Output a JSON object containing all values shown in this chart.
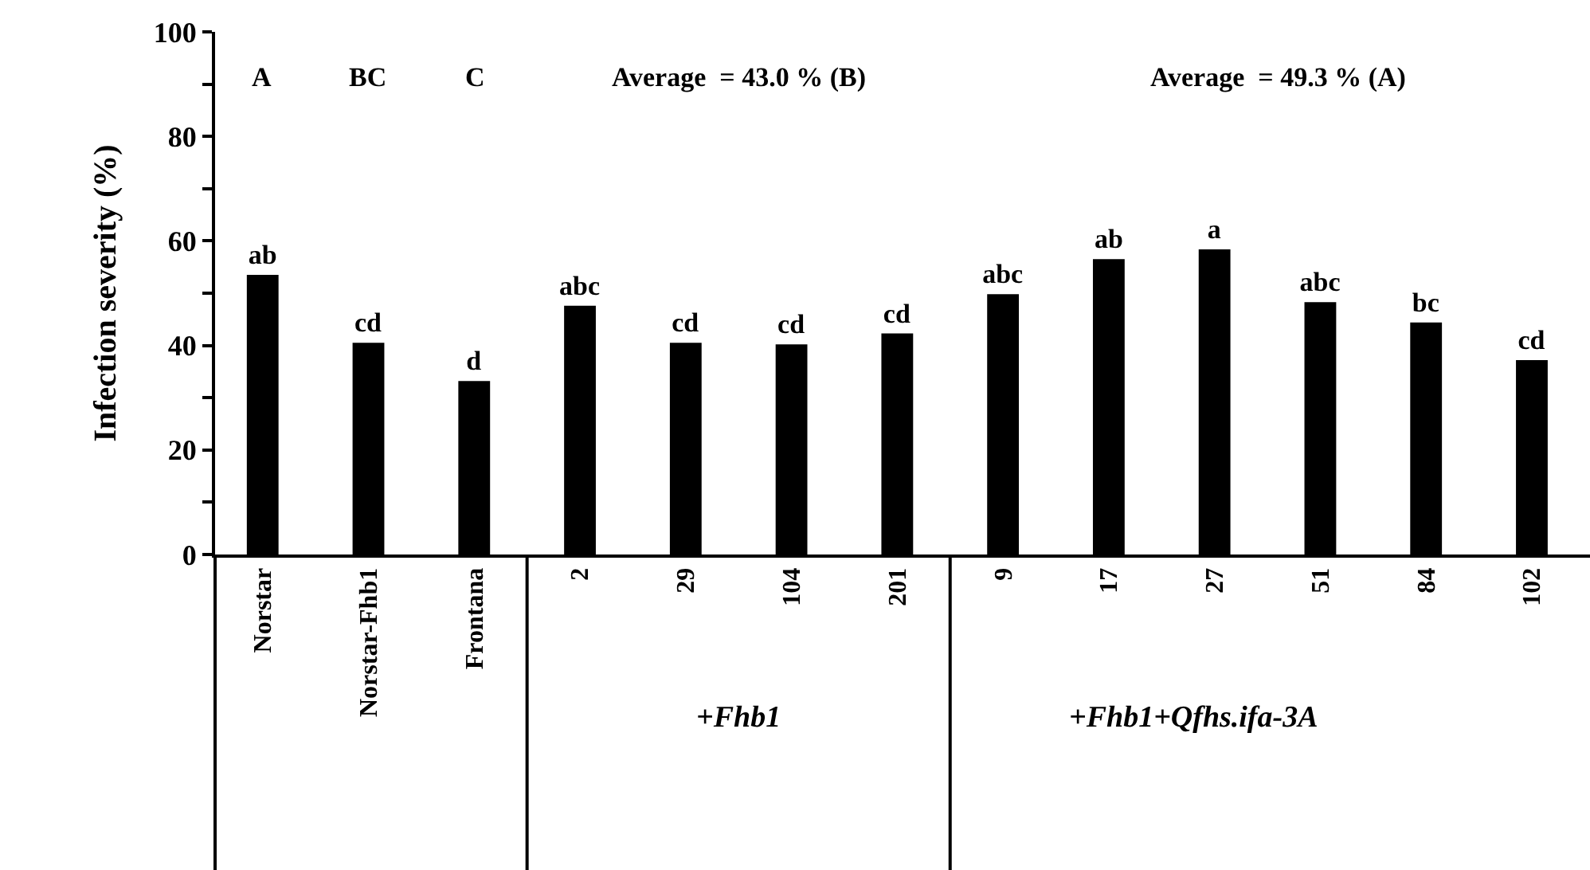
{
  "chart_data": {
    "type": "bar",
    "ylabel": "Infection severity (%)",
    "categories": [
      "Norstar",
      "Norstar-Fhb1",
      "Frontana",
      "2",
      "29",
      "104",
      "201",
      "9",
      "17",
      "27",
      "51",
      "84",
      "102"
    ],
    "values": [
      53.5,
      40.5,
      33.2,
      47.6,
      40.5,
      40.2,
      42.3,
      49.8,
      56.5,
      58.4,
      48.3,
      44.4,
      37.2
    ],
    "value_labels": [
      "ab",
      "cd",
      "d",
      "abc",
      "cd",
      "cd",
      "cd",
      "abc",
      "ab",
      "a",
      "abc",
      "bc",
      "cd"
    ],
    "color": "#000000",
    "ylim": [
      0,
      100
    ],
    "yticks": [
      0,
      {
        "value": 10,
        "label": null
      },
      20,
      {
        "value": 30,
        "label": null
      },
      40,
      {
        "value": 50,
        "label": null
      },
      60,
      {
        "value": 70,
        "label": null
      },
      80,
      {
        "value": 90,
        "label": null
      },
      100
    ],
    "grid": false,
    "annotations": [
      "A",
      "BC",
      "C",
      "Average  = 43.0 % (B)",
      "Average  = 49.3 % (A)",
      "+Fhb1",
      "+Fhb1+Qfhs.ifa-3A"
    ]
  }
}
